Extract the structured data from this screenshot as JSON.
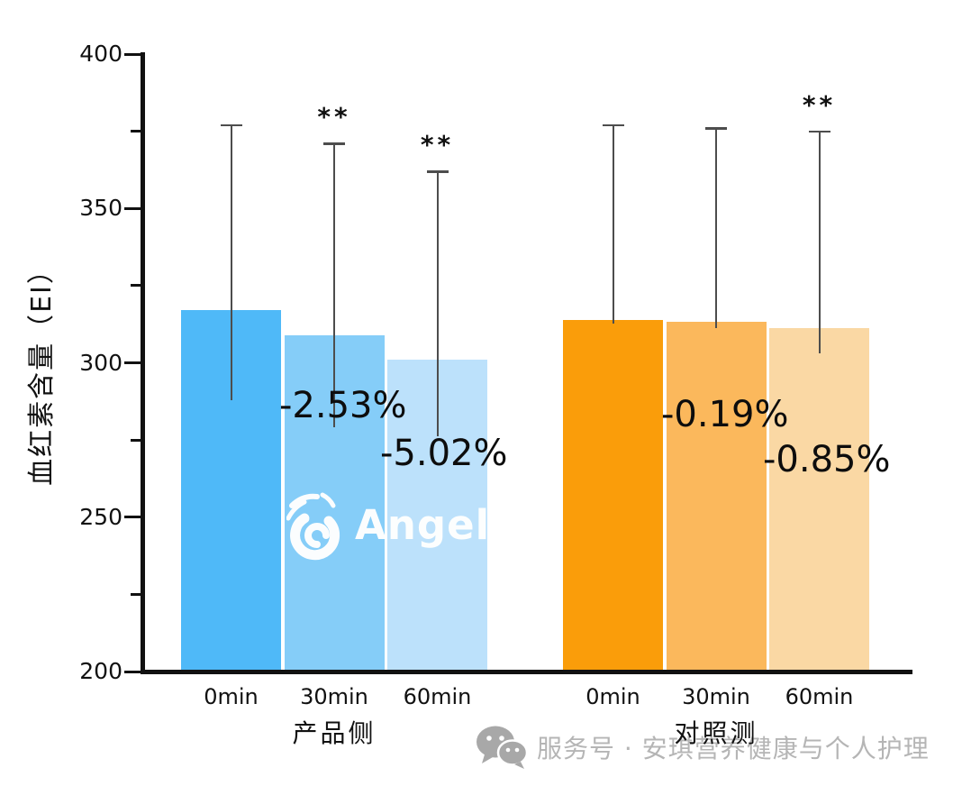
{
  "chart_data": {
    "type": "bar",
    "title": "",
    "ylabel": "血红素含量（EI）",
    "xlabel": "",
    "ylim": [
      200,
      400
    ],
    "yticks": [
      400,
      350,
      300,
      250,
      200
    ],
    "minor_yticks": [
      375,
      325,
      275,
      225
    ],
    "grid": false,
    "legend": "none",
    "categories": [
      "0min",
      "30min",
      "60min"
    ],
    "groups": [
      {
        "label": "产品侧",
        "values": [
          317,
          309,
          301
        ],
        "error_bar_tops": [
          377,
          371,
          362
        ],
        "significance": [
          "",
          "**",
          "**"
        ],
        "change_labels": [
          "",
          "-2.53%",
          "-5.02%"
        ],
        "colors": [
          "#4FB9F8",
          "#85CDF8",
          "#BCE1FB"
        ]
      },
      {
        "label": "对照测",
        "values": [
          314,
          313.4,
          311.3
        ],
        "error_bar_tops": [
          377,
          376,
          375
        ],
        "significance": [
          "",
          "",
          "**"
        ],
        "change_labels": [
          "",
          "-0.19%",
          "-0.85%"
        ],
        "colors": [
          "#FA9D0A",
          "#FBB85C",
          "#FAD8A4"
        ]
      }
    ],
    "axis_color": "#111111",
    "error_bar_color": "#4d4d4d"
  },
  "watermark": {
    "logo_text": "Angel",
    "logo_registered": "®",
    "wechat_text": "服务号 · 安琪营养健康与个人护理"
  }
}
